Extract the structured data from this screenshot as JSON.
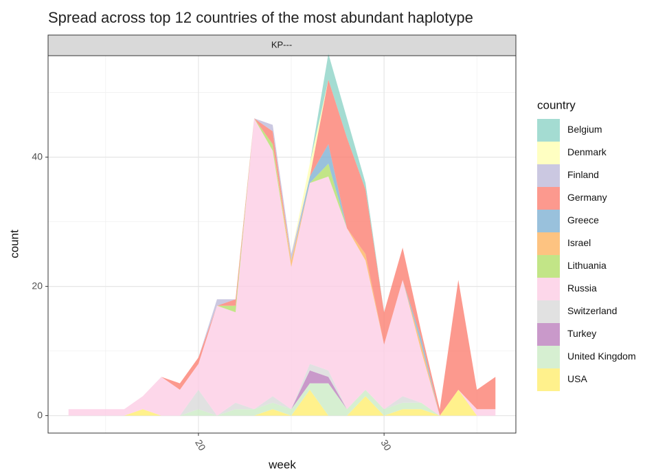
{
  "chart_data": {
    "type": "stacked_area",
    "title": "Spread across top 12 countries of the most abundant haplotype",
    "facet": "KP---",
    "x_label": "week",
    "y_label": "count",
    "legend_title": "country",
    "x": [
      13,
      14,
      15,
      16,
      17,
      18,
      19,
      20,
      21,
      22,
      23,
      24,
      25,
      26,
      27,
      28,
      29,
      30,
      31,
      32,
      33,
      34,
      35,
      36
    ],
    "series": [
      {
        "name": "Belgium",
        "color": "#8dd3c7",
        "values": [
          0,
          0,
          0,
          0,
          0,
          0,
          0,
          0,
          0,
          0,
          0,
          0,
          0,
          0,
          4,
          3,
          1,
          0,
          0,
          0,
          0,
          0,
          0,
          0
        ]
      },
      {
        "name": "Denmark",
        "color": "#ffffb3",
        "values": [
          0,
          0,
          0,
          0,
          0,
          0,
          0,
          0,
          0,
          0,
          0,
          0,
          0,
          2,
          0,
          0,
          0,
          0,
          0,
          0,
          0,
          0,
          0,
          0
        ]
      },
      {
        "name": "Finland",
        "color": "#bebada",
        "values": [
          0,
          0,
          0,
          0,
          0,
          0,
          0,
          0,
          1,
          0,
          0,
          1,
          1,
          0,
          0,
          0,
          0,
          0,
          0,
          0,
          0,
          0,
          0,
          0
        ]
      },
      {
        "name": "Germany",
        "color": "#fb8072",
        "values": [
          0,
          0,
          0,
          0,
          0,
          0,
          1,
          1,
          0,
          1,
          0,
          2,
          0,
          0,
          10,
          14,
          10,
          5,
          5,
          1,
          1,
          17,
          3,
          5
        ]
      },
      {
        "name": "Greece",
        "color": "#80b1d3",
        "values": [
          0,
          0,
          0,
          0,
          0,
          0,
          0,
          0,
          0,
          0,
          0,
          0,
          0,
          1,
          3,
          0,
          0,
          0,
          0,
          1,
          0,
          0,
          0,
          0
        ]
      },
      {
        "name": "Israel",
        "color": "#fdb462",
        "values": [
          0,
          0,
          0,
          0,
          0,
          0,
          0,
          0,
          0,
          0,
          0,
          0,
          1,
          0,
          0,
          0,
          1,
          0,
          0,
          1,
          0,
          0,
          0,
          0
        ]
      },
      {
        "name": "Lithuania",
        "color": "#b3de69",
        "values": [
          0,
          0,
          0,
          0,
          0,
          0,
          0,
          0,
          0,
          1,
          0,
          1,
          0,
          0,
          2,
          0,
          0,
          0,
          0,
          0,
          0,
          0,
          0,
          0
        ]
      },
      {
        "name": "Russia",
        "color": "#fccde5",
        "values": [
          1,
          1,
          1,
          1,
          2,
          6,
          4,
          4,
          17,
          14,
          45,
          38,
          22,
          28,
          30,
          28,
          20,
          10,
          18,
          8,
          0,
          0,
          1,
          1
        ]
      },
      {
        "name": "Switzerland",
        "color": "#d9d9d9",
        "values": [
          0,
          0,
          0,
          0,
          0,
          0,
          0,
          3,
          0,
          1,
          0,
          1,
          0,
          1,
          1,
          0,
          0,
          0,
          1,
          0,
          0,
          0,
          0,
          0
        ]
      },
      {
        "name": "Turkey",
        "color": "#bc80bd",
        "values": [
          0,
          0,
          0,
          0,
          0,
          0,
          0,
          0,
          0,
          0,
          0,
          0,
          0,
          2,
          1,
          0,
          0,
          0,
          0,
          0,
          0,
          0,
          0,
          0
        ]
      },
      {
        "name": "United Kingdom",
        "color": "#ccebc5",
        "values": [
          0,
          0,
          0,
          0,
          0,
          0,
          0,
          1,
          0,
          1,
          1,
          1,
          1,
          1,
          5,
          1,
          1,
          1,
          1,
          1,
          0,
          0,
          0,
          0
        ]
      },
      {
        "name": "USA",
        "color": "#ffed6f",
        "values": [
          0,
          0,
          0,
          0,
          1,
          0,
          0,
          0,
          0,
          0,
          0,
          1,
          0,
          4,
          0,
          0,
          3,
          0,
          1,
          1,
          0,
          4,
          0,
          0
        ]
      }
    ],
    "xlim": [
      11.9,
      37.1
    ],
    "ylim": [
      -2.7,
      55.7
    ],
    "xticks": [
      20,
      30
    ],
    "yticks": [
      0,
      20,
      40
    ],
    "xminorticks": [
      15,
      25,
      35
    ],
    "yminorticks": [
      10,
      30,
      50
    ],
    "grid": true
  }
}
